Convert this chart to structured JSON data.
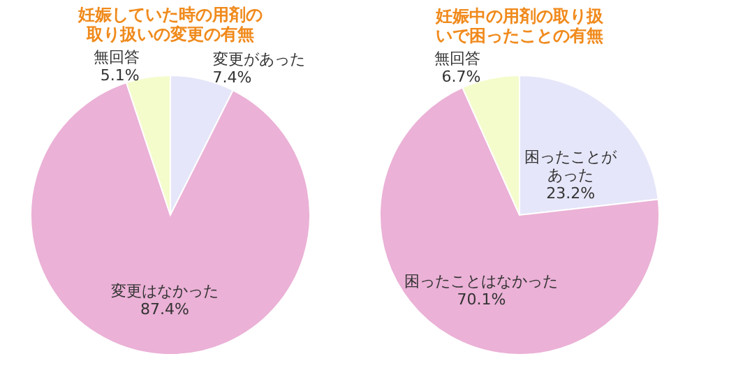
{
  "chart_data": [
    {
      "type": "pie",
      "title": "妊娠していた時の用剤の取り扱いの変更の有無",
      "categories": [
        "変更があった",
        "変更はなかった",
        "無回答"
      ],
      "values": [
        7.4,
        87.4,
        5.1
      ],
      "value_labels": [
        "7.4%",
        "87.4%",
        "5.1%"
      ],
      "colors": [
        "#e6e6fa",
        "#ebb1d6",
        "#f4fccc"
      ]
    },
    {
      "type": "pie",
      "title": "妊娠中の用剤の取り扱いで困ったことの有無",
      "categories": [
        "困ったことがあった",
        "困ったことはなかった",
        "無回答"
      ],
      "values": [
        23.2,
        70.1,
        6.7
      ],
      "value_labels": [
        "23.2%",
        "70.1%",
        "6.7%"
      ],
      "colors": [
        "#e6e6fa",
        "#ebb1d6",
        "#f4fccc"
      ]
    }
  ]
}
